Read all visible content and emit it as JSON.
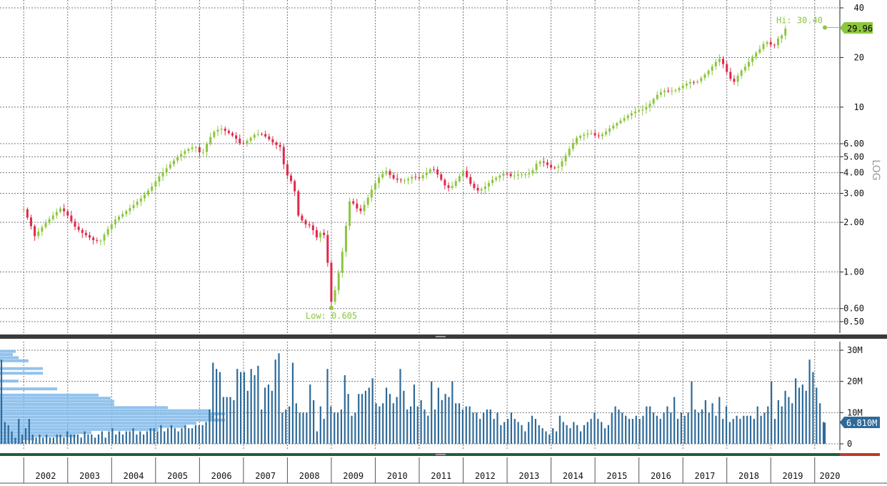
{
  "chart_data": [
    {
      "type": "candlestick",
      "scale": "log",
      "ylim": [
        0.45,
        42
      ],
      "y_ticks": [
        "0.50",
        "0.60",
        "1.00",
        "2.00",
        "3.00",
        "4.00",
        "5.00",
        "6.00",
        "10",
        "20",
        "40"
      ],
      "x_years": [
        "2002",
        "2003",
        "2004",
        "2005",
        "2006",
        "2007",
        "2008",
        "2009",
        "2010",
        "2011",
        "2012",
        "2013",
        "2014",
        "2015",
        "2016",
        "2017",
        "2018",
        "2019",
        "2020"
      ],
      "x_range": [
        2001.5,
        2020.2
      ],
      "grid": true,
      "close_path": [
        [
          2001.5,
          2.4
        ],
        [
          2001.65,
          1.95
        ],
        [
          2001.75,
          1.65
        ],
        [
          2001.9,
          1.85
        ],
        [
          2002.05,
          2.05
        ],
        [
          2002.2,
          2.25
        ],
        [
          2002.35,
          2.45
        ],
        [
          2002.5,
          2.2
        ],
        [
          2002.65,
          1.9
        ],
        [
          2002.8,
          1.75
        ],
        [
          2002.95,
          1.65
        ],
        [
          2003.1,
          1.55
        ],
        [
          2003.25,
          1.55
        ],
        [
          2003.4,
          1.8
        ],
        [
          2003.6,
          2.1
        ],
        [
          2003.8,
          2.3
        ],
        [
          2004.0,
          2.55
        ],
        [
          2004.2,
          2.85
        ],
        [
          2004.4,
          3.25
        ],
        [
          2004.6,
          3.85
        ],
        [
          2004.8,
          4.4
        ],
        [
          2005.0,
          5.0
        ],
        [
          2005.2,
          5.5
        ],
        [
          2005.4,
          5.8
        ],
        [
          2005.55,
          5.1
        ],
        [
          2005.7,
          6.3
        ],
        [
          2005.85,
          7.2
        ],
        [
          2006.0,
          7.4
        ],
        [
          2006.15,
          7.0
        ],
        [
          2006.3,
          6.6
        ],
        [
          2006.45,
          5.9
        ],
        [
          2006.6,
          6.3
        ],
        [
          2006.75,
          6.8
        ],
        [
          2006.9,
          6.9
        ],
        [
          2007.05,
          6.5
        ],
        [
          2007.2,
          6.0
        ],
        [
          2007.35,
          5.7
        ],
        [
          2007.45,
          4.0
        ],
        [
          2007.55,
          3.7
        ],
        [
          2007.65,
          3.3
        ],
        [
          2007.75,
          2.2
        ],
        [
          2007.9,
          1.95
        ],
        [
          2008.05,
          1.9
        ],
        [
          2008.15,
          1.6
        ],
        [
          2008.3,
          1.8
        ],
        [
          2008.4,
          1.45
        ],
        [
          2008.45,
          0.7
        ],
        [
          2008.5,
          0.66
        ],
        [
          2008.6,
          0.8
        ],
        [
          2008.7,
          1.1
        ],
        [
          2008.8,
          1.6
        ],
        [
          2008.9,
          2.7
        ],
        [
          2009.0,
          2.6
        ],
        [
          2009.15,
          2.3
        ],
        [
          2009.3,
          2.7
        ],
        [
          2009.45,
          3.3
        ],
        [
          2009.6,
          3.8
        ],
        [
          2009.75,
          4.1
        ],
        [
          2009.9,
          3.7
        ],
        [
          2010.05,
          3.6
        ],
        [
          2010.2,
          3.6
        ],
        [
          2010.35,
          3.8
        ],
        [
          2010.5,
          3.7
        ],
        [
          2010.65,
          4.0
        ],
        [
          2010.8,
          4.3
        ],
        [
          2010.95,
          3.8
        ],
        [
          2011.1,
          3.3
        ],
        [
          2011.2,
          3.2
        ],
        [
          2011.35,
          3.6
        ],
        [
          2011.5,
          4.1
        ],
        [
          2011.6,
          3.7
        ],
        [
          2011.7,
          3.3
        ],
        [
          2011.85,
          3.1
        ],
        [
          2012.0,
          3.3
        ],
        [
          2012.15,
          3.6
        ],
        [
          2012.3,
          3.8
        ],
        [
          2012.45,
          4.0
        ],
        [
          2012.6,
          3.8
        ],
        [
          2012.75,
          3.9
        ],
        [
          2012.9,
          3.9
        ],
        [
          2013.05,
          4.0
        ],
        [
          2013.2,
          4.7
        ],
        [
          2013.35,
          4.6
        ],
        [
          2013.5,
          4.3
        ],
        [
          2013.65,
          4.3
        ],
        [
          2013.8,
          4.9
        ],
        [
          2013.95,
          5.8
        ],
        [
          2014.1,
          6.6
        ],
        [
          2014.25,
          6.8
        ],
        [
          2014.4,
          7.0
        ],
        [
          2014.55,
          6.6
        ],
        [
          2014.7,
          6.9
        ],
        [
          2014.85,
          7.5
        ],
        [
          2015.0,
          8.0
        ],
        [
          2015.15,
          8.5
        ],
        [
          2015.3,
          9.1
        ],
        [
          2015.45,
          9.5
        ],
        [
          2015.6,
          9.7
        ],
        [
          2015.75,
          10.5
        ],
        [
          2015.9,
          11.8
        ],
        [
          2016.05,
          12.6
        ],
        [
          2016.2,
          12.5
        ],
        [
          2016.35,
          12.7
        ],
        [
          2016.5,
          13.5
        ],
        [
          2016.65,
          14.2
        ],
        [
          2016.8,
          14.1
        ],
        [
          2016.95,
          15.3
        ],
        [
          2017.1,
          16.8
        ],
        [
          2017.25,
          18.8
        ],
        [
          2017.35,
          19.8
        ],
        [
          2017.45,
          17.5
        ],
        [
          2017.55,
          15.3
        ],
        [
          2017.65,
          14.0
        ],
        [
          2017.8,
          16.3
        ],
        [
          2017.95,
          18.0
        ],
        [
          2018.1,
          20.5
        ],
        [
          2018.25,
          22.5
        ],
        [
          2018.35,
          24.5
        ],
        [
          2018.45,
          25.0
        ],
        [
          2018.55,
          22.8
        ],
        [
          2018.65,
          25.8
        ],
        [
          2018.75,
          27.2
        ],
        [
          2018.85,
          29.96
        ]
      ],
      "last_price": "29.96",
      "high_label": "Hi: 30.40",
      "high_value": 30.4,
      "low_label": "Low: 0.605",
      "low_value": 0.605,
      "up_color": "#8cc63f",
      "down_color": "#e0284a",
      "watermark": "LOG"
    },
    {
      "type": "bar",
      "name": "volume",
      "ylim": [
        0,
        32
      ],
      "y_ticks": [
        "0",
        "10M",
        "20M",
        "30M"
      ],
      "y_tick_values": [
        0,
        10,
        20,
        30
      ],
      "last_value_label": "6.810M",
      "last_value": 6.81,
      "bar_color": "#2e6a99",
      "profile_color": "#7fb8ea",
      "profile": [
        {
          "v": 29.5,
          "w": 22
        },
        {
          "v": 28.5,
          "w": 18
        },
        {
          "v": 27.5,
          "w": 26
        },
        {
          "v": 26.5,
          "w": 40
        },
        {
          "v": 24,
          "w": 60
        },
        {
          "v": 22.5,
          "w": 60
        },
        {
          "v": 20,
          "w": 26
        },
        {
          "v": 17.5,
          "w": 80
        },
        {
          "v": 15.5,
          "w": 138
        },
        {
          "v": 14.5,
          "w": 155
        },
        {
          "v": 13.5,
          "w": 160
        },
        {
          "v": 12.5,
          "w": 160
        },
        {
          "v": 11.5,
          "w": 235
        },
        {
          "v": 10.5,
          "w": 295
        },
        {
          "v": 9.5,
          "w": 315
        },
        {
          "v": 8.5,
          "w": 300
        },
        {
          "v": 7.5,
          "w": 315
        },
        {
          "v": 6.5,
          "w": 275
        },
        {
          "v": 5.5,
          "w": 260
        },
        {
          "v": 4.5,
          "w": 222
        },
        {
          "v": 3.5,
          "w": 128
        },
        {
          "v": 2.5,
          "w": 106
        },
        {
          "v": 1.5,
          "w": 48
        },
        {
          "v": 0.5,
          "w": 32
        }
      ],
      "values": [
        27,
        7,
        6,
        4,
        2,
        8,
        3,
        5,
        8,
        3,
        2,
        3,
        2,
        3,
        2,
        2,
        3,
        3,
        2,
        4,
        3,
        3,
        3,
        2,
        4,
        3,
        3,
        2,
        3,
        4,
        2,
        4,
        5,
        3,
        4,
        3,
        4,
        4,
        5,
        3,
        4,
        3,
        4,
        5,
        5,
        4,
        6,
        4,
        5,
        6,
        5,
        4,
        5,
        6,
        5,
        5,
        6,
        6,
        6,
        7,
        11,
        26,
        24,
        23,
        15,
        15,
        15,
        14,
        24,
        23,
        23,
        17,
        24,
        22,
        25,
        11,
        18,
        19,
        17,
        27,
        29,
        10,
        11,
        12,
        26,
        13,
        10,
        10,
        10,
        19,
        14,
        4,
        12,
        8,
        24,
        12,
        10,
        10,
        11,
        22,
        16,
        9,
        10,
        16,
        16,
        17,
        18,
        21,
        13,
        12,
        13,
        18,
        16,
        13,
        15,
        24,
        17,
        11,
        12,
        19,
        12,
        14,
        11,
        9,
        20,
        11,
        18,
        14,
        16,
        15,
        20,
        13,
        13,
        11,
        12,
        12,
        10,
        10,
        8,
        10,
        11,
        11,
        8,
        10,
        6,
        7,
        8,
        10,
        8,
        7,
        6,
        4,
        7,
        9,
        8,
        6,
        5,
        4,
        3,
        5,
        4,
        9,
        7,
        6,
        5,
        7,
        6,
        4,
        6,
        7,
        8,
        10,
        8,
        7,
        5,
        6,
        10,
        12,
        11,
        10,
        9,
        8,
        8,
        9,
        8,
        9,
        12,
        12,
        10,
        9,
        8,
        10,
        12,
        10,
        15,
        8,
        10,
        9,
        10,
        20,
        11,
        10,
        11,
        14,
        10,
        13,
        9,
        15,
        8,
        12,
        7,
        8,
        9,
        8,
        9,
        9,
        9,
        8,
        12,
        9,
        10,
        12,
        20,
        8,
        14,
        12,
        17,
        15,
        13,
        21,
        18,
        19,
        17,
        27,
        23,
        18,
        13,
        7
      ]
    }
  ]
}
